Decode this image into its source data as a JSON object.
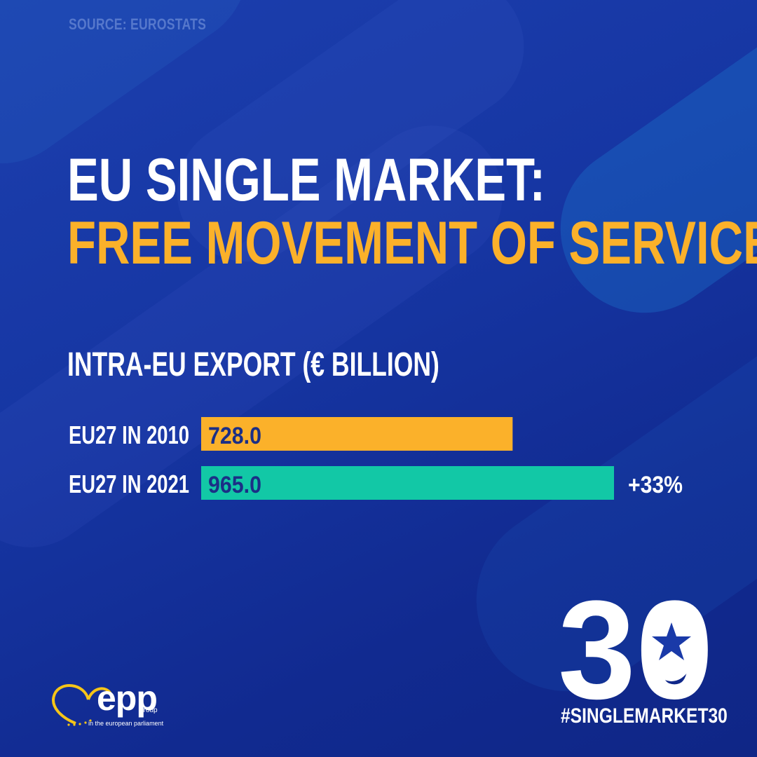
{
  "source": "SOURCE: EUROSTATS",
  "title": {
    "line1": "EU SINGLE MARKET:",
    "line2": "FREE MOVEMENT OF SERVICES"
  },
  "colors": {
    "background": "#1636a3",
    "title_accent": "#fbb12a",
    "bar_2010": "#fbb12a",
    "bar_2021": "#12c8a6",
    "value_text": "#1b2f86"
  },
  "chart_data": {
    "type": "bar",
    "orientation": "horizontal",
    "title": "INTRA-EU EXPORT (€ BILLION)",
    "categories": [
      "EU27 IN 2010",
      "EU27 IN 2021"
    ],
    "values": [
      728.0,
      965.0
    ],
    "value_labels": [
      "728.0",
      "965.0"
    ],
    "annotation": "+33%",
    "xlim": [
      0,
      965.0
    ],
    "grid": false,
    "legend": "none"
  },
  "logo": {
    "number_30": "30",
    "hashtag": "#SINGLEMARKET30",
    "icons": [
      "star-icon",
      "heart-stars-icon"
    ],
    "epp_text": "epp",
    "epp_group": "group",
    "epp_subtitle": "in the european parliament"
  }
}
